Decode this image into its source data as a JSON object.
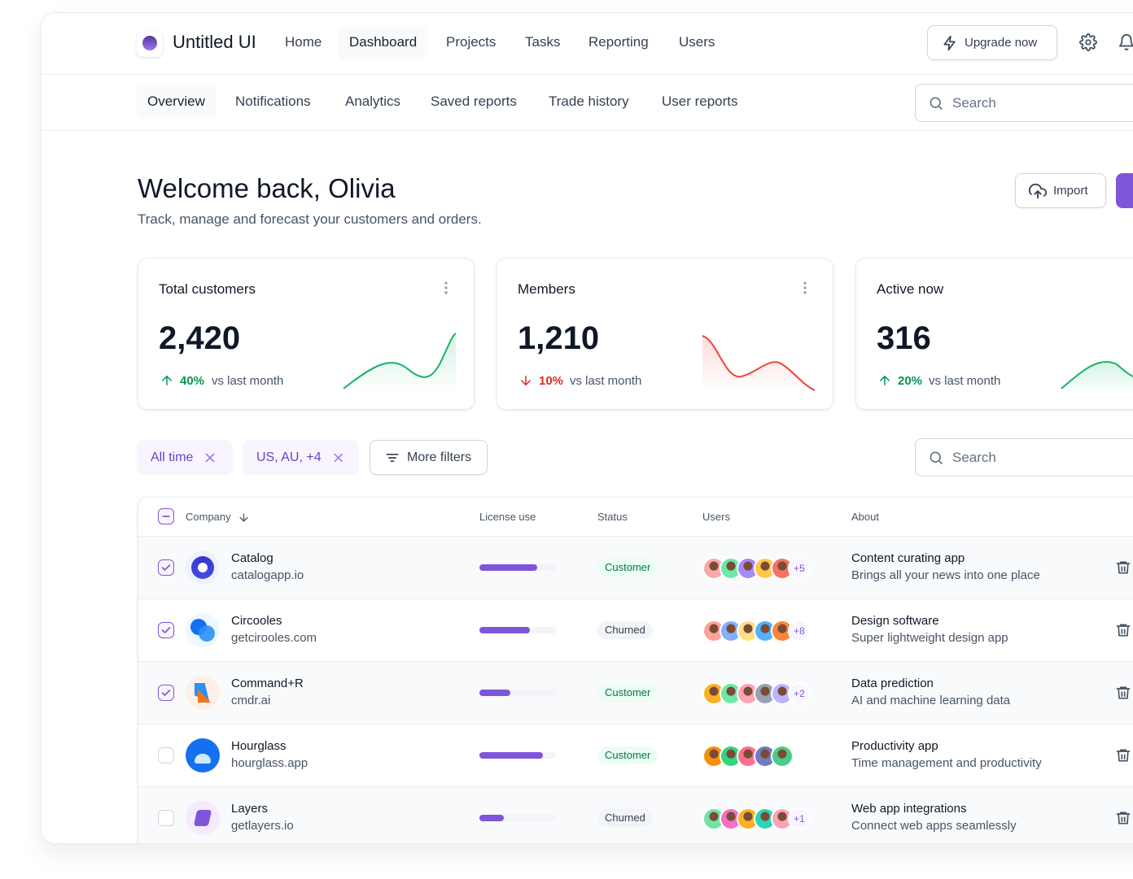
{
  "header": {
    "brand": "Untitled UI",
    "nav": [
      "Home",
      "Dashboard",
      "Projects",
      "Tasks",
      "Reporting",
      "Users"
    ],
    "active_nav": 1,
    "upgrade": "Upgrade now",
    "subnav": [
      "Overview",
      "Notifications",
      "Analytics",
      "Saved reports",
      "Trade history",
      "User reports"
    ],
    "active_subnav": 0,
    "search": "Search"
  },
  "welcome": {
    "title": "Welcome back, Olivia",
    "subtitle": "Track, manage and forecast your customers and orders.",
    "import": "Import"
  },
  "stats": [
    {
      "label": "Total customers",
      "value": "2,420",
      "change": "40%",
      "trend": "up",
      "note": "vs last month"
    },
    {
      "label": "Members",
      "value": "1,210",
      "change": "10%",
      "trend": "down",
      "note": "vs last month"
    },
    {
      "label": "Active now",
      "value": "316",
      "change": "20%",
      "trend": "up",
      "note": "vs last month"
    }
  ],
  "filters": {
    "chips": [
      "All time",
      "US, AU, +4"
    ],
    "more": "More filters",
    "search": "Search"
  },
  "table": {
    "columns": [
      "Company",
      "License use",
      "Status",
      "Users",
      "About"
    ],
    "rows": [
      {
        "checked": true,
        "company": "Catalog",
        "domain": "catalogapp.io",
        "license_use": 75,
        "status": "Customer",
        "status_tone": "success",
        "users_extra": "+5",
        "about": "Content curating app",
        "about_detail": "Brings all your news into one place"
      },
      {
        "checked": true,
        "company": "Circooles",
        "domain": "getcirooles.com",
        "license_use": 66,
        "status": "Churned",
        "status_tone": "neutral",
        "users_extra": "+8",
        "about": "Design software",
        "about_detail": "Super lightweight design app"
      },
      {
        "checked": true,
        "company": "Command+R",
        "domain": "cmdr.ai",
        "license_use": 40,
        "status": "Customer",
        "status_tone": "success",
        "users_extra": "+2",
        "about": "Data prediction",
        "about_detail": "AI and machine learning data"
      },
      {
        "checked": false,
        "company": "Hourglass",
        "domain": "hourglass.app",
        "license_use": 83,
        "status": "Customer",
        "status_tone": "success",
        "about": "Productivity app",
        "about_detail": "Time management and productivity"
      },
      {
        "checked": false,
        "company": "Layers",
        "domain": "getlayers.io",
        "license_use": 32,
        "status": "Churned",
        "status_tone": "neutral",
        "users_extra": "+1",
        "about": "Web app integrations",
        "about_detail": "Connect web apps seamlessly"
      }
    ]
  }
}
